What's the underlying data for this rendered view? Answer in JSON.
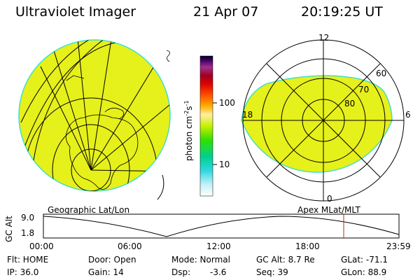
{
  "header": {
    "title": "Ultraviolet Imager",
    "date": "21 Apr 07",
    "time": "20:19:25 UT"
  },
  "colorbar": {
    "label_base": "photon cm",
    "label_exp1": "-2",
    "label_s": "s",
    "label_exp2": "-1",
    "ticks": [
      "100",
      "10"
    ]
  },
  "polar": {
    "labels": [
      "12",
      "6",
      "18",
      "0"
    ],
    "lat_labels": [
      "60",
      "70",
      "80"
    ]
  },
  "panel_labels": {
    "left": "Geographic Lat/Lon",
    "right": "Apex  MLat/MLT"
  },
  "altplot": {
    "ylabel": "GC Alt",
    "yticks": [
      "9.0",
      "1.8"
    ],
    "xticks": [
      "00:00",
      "06:00",
      "12:00",
      "18:00",
      "23:59"
    ]
  },
  "footer": {
    "row1": {
      "flt": "Flt: HOME",
      "door": "Door: Open",
      "mode": "Mode: Normal",
      "gcalt": "GC Alt: 8.7 Re",
      "glat": "GLat: -71.1"
    },
    "row2": {
      "ip": "IP: 36.0",
      "gain": "Gain: 14",
      "dsp_label": "Dsp:",
      "dsp_value": "-3.6",
      "seq": "Seq: 39",
      "glon": "GLon: 88.9"
    }
  },
  "colors": {
    "fill": "#e6f01a",
    "edge": "#40e0c8",
    "marker": "#cc2222"
  }
}
